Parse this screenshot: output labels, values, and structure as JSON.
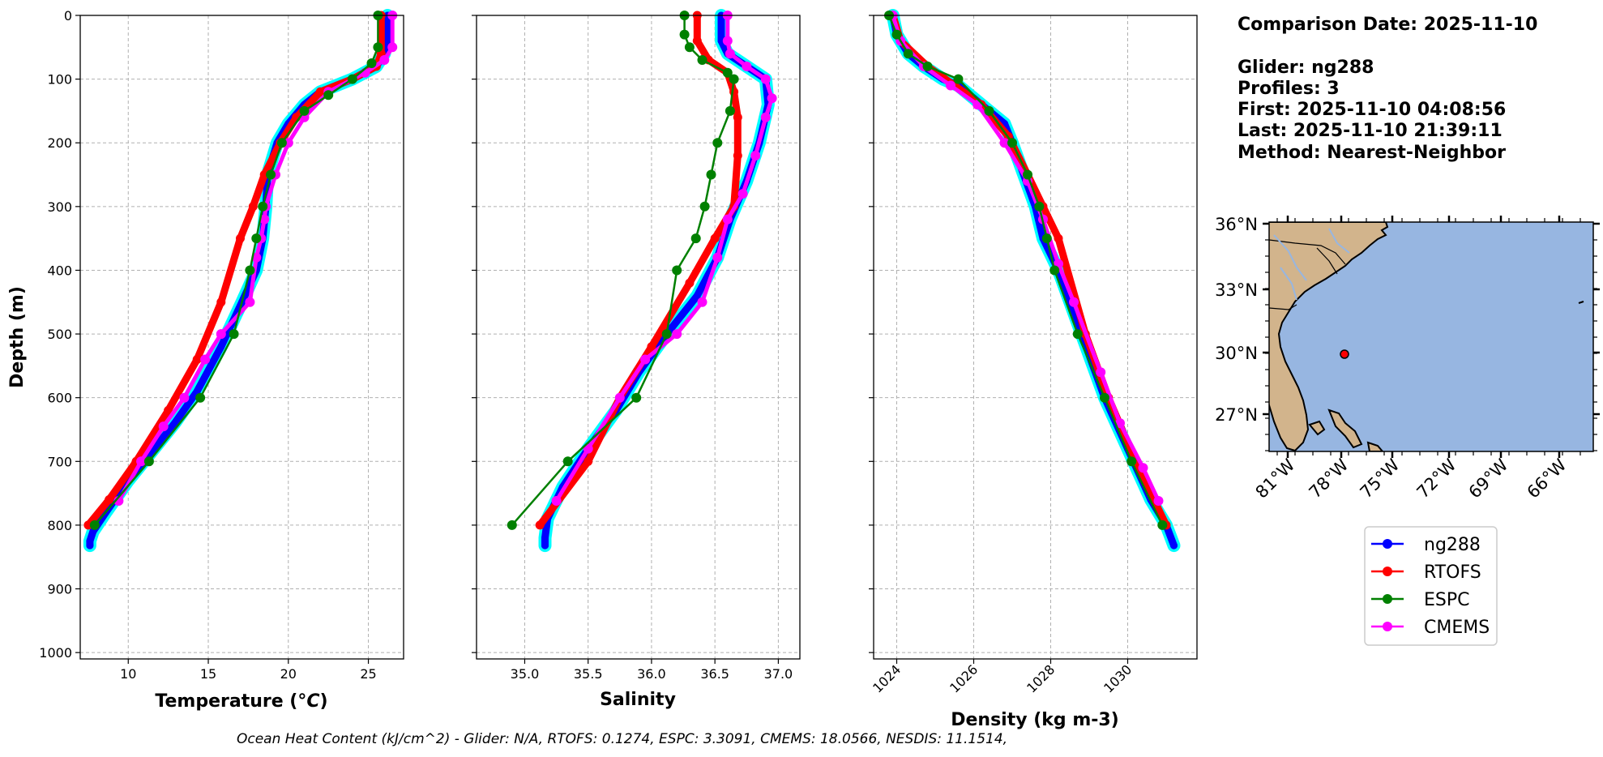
{
  "chart_data": [
    {
      "type": "line",
      "xlabel": "Temperature (°C)",
      "ylabel": "Depth (m)",
      "xlim": [
        7.0,
        27.2
      ],
      "ylim": [
        1010,
        0
      ],
      "xticks": [
        10,
        15,
        20,
        25
      ],
      "yticks": [
        0,
        100,
        200,
        300,
        400,
        500,
        600,
        700,
        800,
        900,
        1000
      ],
      "grid": true,
      "series": [
        {
          "name": "ng288",
          "x": [
            26.2,
            26.2,
            26.0,
            25.5,
            24.0,
            22.0,
            21.0,
            20.0,
            19.3,
            18.7,
            18.6,
            18.4,
            18.0,
            17.1,
            15.8,
            14.3,
            12.9,
            11.3,
            10.0,
            8.6,
            7.8,
            7.6,
            7.6
          ],
          "y": [
            0,
            40,
            60,
            80,
            100,
            120,
            140,
            170,
            200,
            250,
            300,
            350,
            400,
            450,
            520,
            590,
            640,
            690,
            730,
            780,
            810,
            825,
            832
          ]
        },
        {
          "name": "RTOFS",
          "x": [
            25.8,
            25.8,
            25.5,
            24.0,
            22.0,
            20.5,
            19.5,
            18.5,
            17.8,
            17.0,
            15.8,
            14.3,
            12.5,
            10.5,
            8.8,
            7.5
          ],
          "y": [
            0,
            60,
            80,
            100,
            120,
            160,
            200,
            250,
            300,
            350,
            450,
            540,
            620,
            700,
            760,
            800
          ]
        },
        {
          "name": "ESPC",
          "x": [
            25.6,
            25.6,
            25.2,
            24.0,
            22.5,
            21.0,
            19.6,
            18.9,
            18.4,
            18.0,
            17.6,
            16.6,
            14.5,
            11.3,
            7.9
          ],
          "y": [
            0,
            50,
            75,
            100,
            125,
            150,
            200,
            250,
            300,
            350,
            400,
            500,
            600,
            700,
            800
          ]
        },
        {
          "name": "CMEMS",
          "x": [
            26.5,
            26.5,
            26.0,
            24.8,
            22.5,
            21.0,
            20.0,
            19.2,
            18.6,
            18.5,
            18.3,
            18.0,
            17.6,
            15.8,
            14.8,
            13.5,
            12.2,
            10.8,
            9.4
          ],
          "y": [
            0,
            50,
            70,
            90,
            120,
            160,
            200,
            250,
            300,
            320,
            350,
            380,
            450,
            500,
            540,
            600,
            645,
            700,
            762
          ]
        }
      ]
    },
    {
      "type": "line",
      "xlabel": "Salinity",
      "xlim": [
        34.62,
        37.17
      ],
      "ylim": [
        1010,
        0
      ],
      "xticks": [
        35.0,
        35.5,
        36.0,
        36.5,
        37.0
      ],
      "grid": true,
      "series": [
        {
          "name": "ng288",
          "x": [
            36.55,
            36.55,
            36.6,
            36.75,
            36.9,
            36.92,
            36.85,
            36.75,
            36.62,
            36.52,
            36.36,
            36.12,
            35.9,
            35.72,
            35.5,
            35.3,
            35.18,
            35.16,
            35.16
          ],
          "y": [
            0,
            40,
            60,
            80,
            100,
            140,
            200,
            260,
            320,
            380,
            440,
            500,
            560,
            620,
            680,
            740,
            790,
            820,
            832
          ]
        },
        {
          "name": "RTOFS",
          "x": [
            36.36,
            36.36,
            36.45,
            36.6,
            36.65,
            36.68,
            36.68,
            36.65,
            36.5,
            36.3,
            36.0,
            35.75,
            35.5,
            35.12
          ],
          "y": [
            0,
            40,
            70,
            90,
            120,
            160,
            220,
            300,
            350,
            420,
            520,
            600,
            700,
            800
          ]
        },
        {
          "name": "ESPC",
          "x": [
            36.26,
            36.26,
            36.3,
            36.4,
            36.6,
            36.65,
            36.62,
            36.52,
            36.47,
            36.42,
            36.35,
            36.2,
            36.12,
            35.88,
            35.34,
            34.9
          ],
          "y": [
            0,
            30,
            50,
            70,
            90,
            100,
            150,
            200,
            250,
            300,
            350,
            400,
            500,
            600,
            700,
            800
          ]
        },
        {
          "name": "CMEMS",
          "x": [
            36.6,
            36.6,
            36.62,
            36.75,
            36.9,
            36.95,
            36.9,
            36.82,
            36.72,
            36.6,
            36.52,
            36.4,
            36.2,
            35.95,
            35.75,
            35.5,
            35.25
          ],
          "y": [
            0,
            40,
            60,
            80,
            100,
            130,
            160,
            220,
            280,
            320,
            380,
            450,
            500,
            540,
            600,
            680,
            762
          ]
        }
      ]
    },
    {
      "type": "line",
      "xlabel": "Density (kg m-3)",
      "xlim": [
        1023.4,
        1031.8
      ],
      "ylim": [
        1010,
        0
      ],
      "xticks": [
        1024,
        1026,
        1028,
        1030
      ],
      "grid": true,
      "series": [
        {
          "name": "ng288",
          "x": [
            1023.9,
            1024.0,
            1024.3,
            1024.7,
            1025.2,
            1025.6,
            1026.0,
            1026.4,
            1026.8,
            1027.0,
            1027.3,
            1027.6,
            1027.8,
            1028.2,
            1028.8,
            1029.4,
            1030.0,
            1030.6,
            1031.0,
            1031.2
          ],
          "y": [
            0,
            30,
            60,
            80,
            100,
            110,
            130,
            150,
            170,
            200,
            250,
            300,
            350,
            400,
            500,
            600,
            680,
            760,
            800,
            832
          ]
        },
        {
          "name": "RTOFS",
          "x": [
            1023.9,
            1024.1,
            1024.8,
            1025.5,
            1026.2,
            1026.9,
            1027.4,
            1027.8,
            1028.2,
            1028.9,
            1029.5,
            1030.2,
            1031.0
          ],
          "y": [
            0,
            40,
            80,
            110,
            140,
            190,
            250,
            300,
            350,
            500,
            600,
            700,
            800
          ]
        },
        {
          "name": "ESPC",
          "x": [
            1023.8,
            1024.0,
            1024.3,
            1024.8,
            1025.6,
            1026.4,
            1027.0,
            1027.4,
            1027.7,
            1027.9,
            1028.1,
            1028.7,
            1029.4,
            1030.1,
            1030.9
          ],
          "y": [
            0,
            30,
            60,
            80,
            100,
            150,
            200,
            250,
            300,
            350,
            400,
            500,
            600,
            700,
            800
          ]
        },
        {
          "name": "CMEMS",
          "x": [
            1023.9,
            1024.1,
            1024.7,
            1025.4,
            1026.1,
            1026.8,
            1027.4,
            1027.8,
            1028.2,
            1028.6,
            1029.3,
            1029.8,
            1030.4,
            1030.8
          ],
          "y": [
            0,
            40,
            80,
            110,
            140,
            200,
            260,
            320,
            390,
            450,
            560,
            640,
            710,
            762
          ]
        }
      ]
    }
  ],
  "colors": {
    "ng288": "#0000ff",
    "ng288_halo": "#00ffff",
    "RTOFS": "#ff0000",
    "ESPC": "#008000",
    "CMEMS": "#ff00ff",
    "land": "#d2b48c",
    "ocean": "#97b6e1",
    "grid": "#b0b0b0"
  },
  "info": {
    "lines": [
      "Comparison Date: 2025-11-10",
      "",
      "Glider: ng288",
      "Profiles: 3",
      "First: 2025-11-10 04:08:56",
      "Last: 2025-11-10 21:39:11",
      "Method: Nearest-Neighbor"
    ]
  },
  "map": {
    "lat_labels": [
      "36°N",
      "33°N",
      "30°N",
      "27°N"
    ],
    "lon_labels": [
      "81°W",
      "78°W",
      "75°W",
      "72°W",
      "69°W",
      "66°W"
    ],
    "glider_marker": "red-dot"
  },
  "legend": {
    "entries": [
      "ng288",
      "RTOFS",
      "ESPC",
      "CMEMS"
    ]
  },
  "footer": {
    "text": "Ocean Heat Content (kJ/cm^2) - Glider: N/A,  RTOFS: 0.1274,  ESPC: 3.3091,  CMEMS: 18.0566,  NESDIS: 11.1514,"
  }
}
